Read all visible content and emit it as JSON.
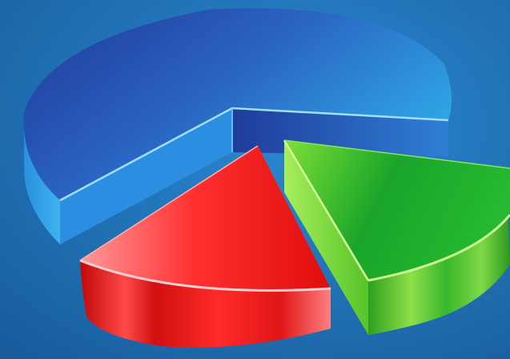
{
  "chart_data": {
    "type": "pie",
    "style": "3d-exploded",
    "slices": [
      {
        "color": "#2a7fd0",
        "value": 0.68
      },
      {
        "color": "#ef1c1c",
        "value": 0.16
      },
      {
        "color": "#2fb52a",
        "value": 0.16
      }
    ]
  },
  "colors": {
    "background": "#1a72b8",
    "background_light": "#2a8ad2"
  }
}
